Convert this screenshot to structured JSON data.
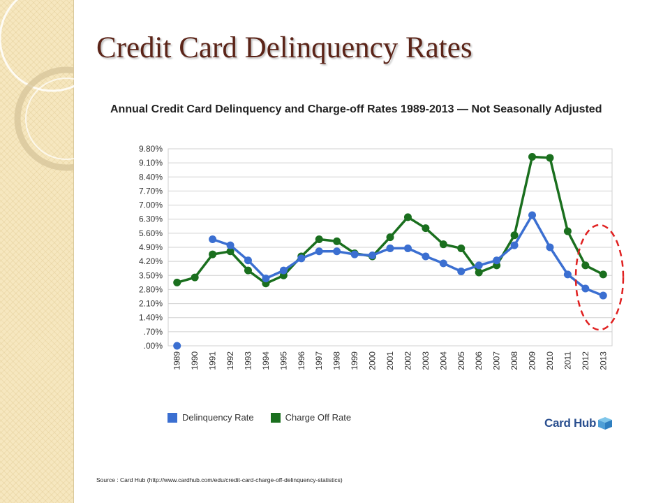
{
  "slide": {
    "title": "Credit Card Delinquency Rates",
    "source": "Source : Card Hub (http://www.cardhub.com/edu/credit-card-charge-off-delinquency-statistics)",
    "logo": {
      "text": "Card Hub",
      "icon": "cube-icon"
    }
  },
  "chart_data": {
    "type": "line",
    "title": "Annual Credit Card Delinquency and Charge-off Rates 1989-2013 — Not Seasonally Adjusted",
    "x": [
      "1989",
      "1990",
      "1991",
      "1992",
      "1993",
      "1994",
      "1995",
      "1996",
      "1997",
      "1998",
      "1999",
      "2000",
      "2001",
      "2002",
      "2003",
      "2004",
      "2005",
      "2006",
      "2007",
      "2008",
      "2009",
      "2010",
      "2011",
      "2012",
      "2013"
    ],
    "y_ticks": [
      ".00%",
      ".70%",
      "1.40%",
      "2.10%",
      "2.80%",
      "3.50%",
      "4.20%",
      "4.90%",
      "5.60%",
      "6.30%",
      "7.00%",
      "7.70%",
      "8.40%",
      "9.10%",
      "9.80%"
    ],
    "ylim": [
      0,
      9.8
    ],
    "grid": true,
    "legend_position": "bottom-left",
    "series": [
      {
        "name": "Delinquency Rate",
        "color": "#3b6fd1",
        "values": [
          0.0,
          null,
          5.3,
          5.0,
          4.25,
          3.35,
          3.75,
          4.35,
          4.7,
          4.7,
          4.55,
          4.5,
          4.85,
          4.85,
          4.45,
          4.1,
          3.7,
          4.0,
          4.25,
          5.0,
          6.5,
          4.9,
          3.55,
          2.85,
          2.5
        ]
      },
      {
        "name": "Charge Off Rate",
        "color": "#1a6f1e",
        "values": [
          3.15,
          3.4,
          4.55,
          4.7,
          3.75,
          3.1,
          3.5,
          4.45,
          5.3,
          5.2,
          4.6,
          4.45,
          5.4,
          6.4,
          5.85,
          5.05,
          4.85,
          3.65,
          4.0,
          5.5,
          9.4,
          9.35,
          5.7,
          4.0,
          3.55
        ]
      }
    ],
    "annotation": {
      "shape": "ellipse",
      "style": "dashed",
      "color": "#e02020",
      "covers": [
        "2012",
        "2013"
      ]
    }
  }
}
